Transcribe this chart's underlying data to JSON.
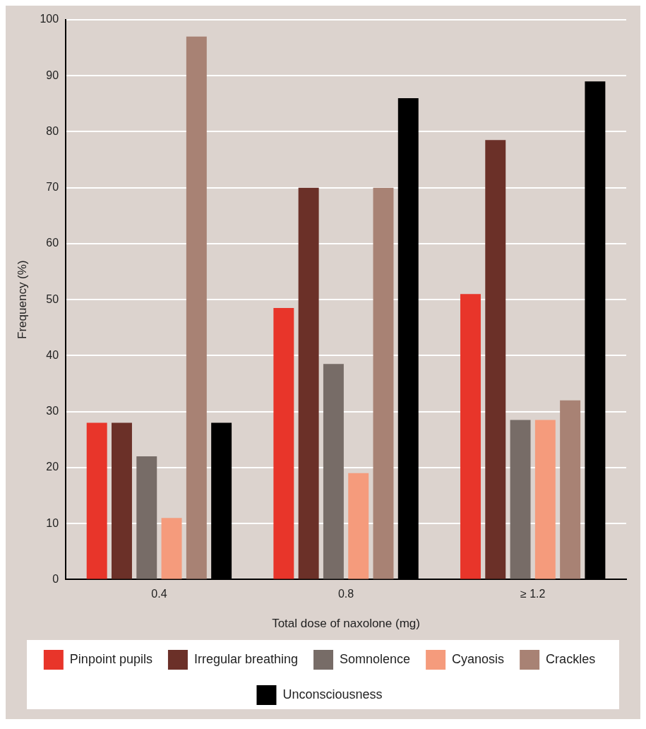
{
  "chart_data": {
    "type": "bar",
    "xlabel": "Total dose of naxolone (mg)",
    "ylabel": "Frequency (%)",
    "categories": [
      "0.4",
      "0.8",
      "≥ 1.2"
    ],
    "series": [
      {
        "name": "Pinpoint pupils",
        "color": "#e8352a",
        "values": [
          28,
          48.5,
          51
        ]
      },
      {
        "name": "Irregular breathing",
        "color": "#6b3028",
        "values": [
          28,
          70,
          78.5
        ]
      },
      {
        "name": "Somnolence",
        "color": "#776c67",
        "values": [
          22,
          38.5,
          28.5
        ]
      },
      {
        "name": "Cyanosis",
        "color": "#f59b7c",
        "values": [
          11,
          19,
          28.5
        ]
      },
      {
        "name": "Crackles",
        "color": "#a88274",
        "values": [
          97,
          70,
          32
        ]
      },
      {
        "name": "Unconsciousness",
        "color": "#000000",
        "values": [
          28,
          86,
          89
        ]
      }
    ],
    "ylim": [
      0,
      100
    ],
    "yticks": [
      0,
      10,
      20,
      30,
      40,
      50,
      60,
      70,
      80,
      90,
      100
    ],
    "grid": "y",
    "legend": "bottom"
  }
}
